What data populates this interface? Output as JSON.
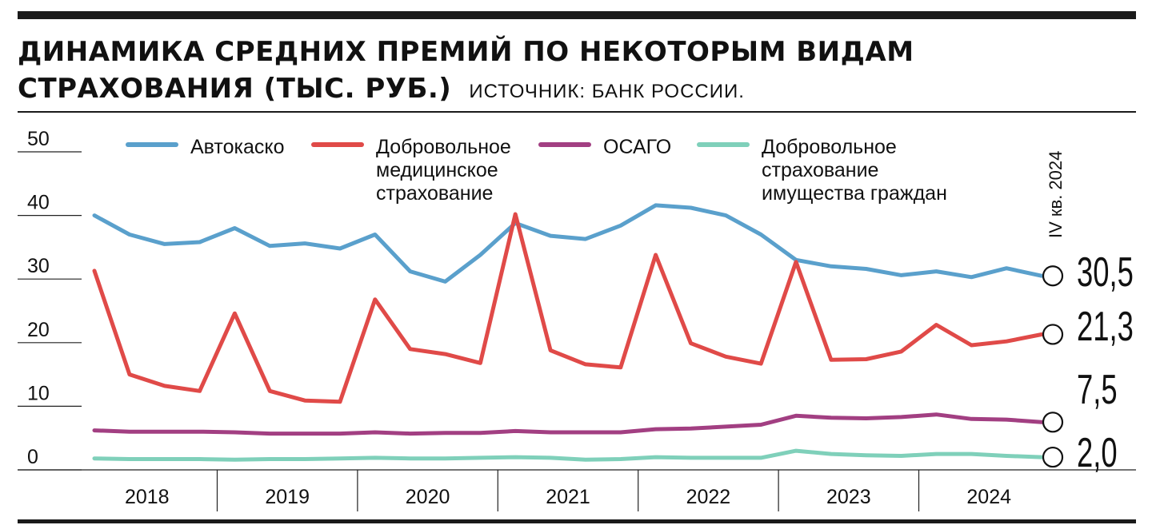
{
  "title": {
    "line1": "ДИНАМИКА СРЕДНИХ ПРЕМИЙ ПО НЕКОТОРЫМ ВИДАМ",
    "line2": "СТРАХОВАНИЯ (ТЫС. РУБ.)",
    "source": "ИСТОЧНИК: БАНК РОССИИ."
  },
  "chart_data": {
    "type": "line",
    "ylim": [
      0,
      50
    ],
    "yticks": [
      "50",
      "40",
      "30",
      "20",
      "10",
      "0"
    ],
    "years": [
      "2018",
      "2019",
      "2020",
      "2021",
      "2022",
      "2023",
      "2024"
    ],
    "period_label": "IV кв. 2024",
    "grid": false,
    "legend_position": "top",
    "series": [
      {
        "name": "Автокаско",
        "legend_lines": [
          "Автокаско"
        ],
        "color": "#5aa0cc",
        "values": [
          40.0,
          37.0,
          35.5,
          35.8,
          38.0,
          35.2,
          35.6,
          34.8,
          37.0,
          31.2,
          29.6,
          33.8,
          38.8,
          36.8,
          36.3,
          38.4,
          41.6,
          41.2,
          40.0,
          37.0,
          33.0,
          32.0,
          31.6,
          30.6,
          31.2,
          30.3,
          31.7,
          30.5
        ],
        "end_label": "30,5"
      },
      {
        "name": "Добровольное медицинское страхование",
        "legend_lines": [
          "Добровольное",
          "медицинское",
          "страхование"
        ],
        "color": "#e04a48",
        "values": [
          31.3,
          15.0,
          13.2,
          12.4,
          24.6,
          12.4,
          10.9,
          10.7,
          26.8,
          19.0,
          18.2,
          16.8,
          40.2,
          18.8,
          16.6,
          16.1,
          33.8,
          19.9,
          17.8,
          16.7,
          32.7,
          17.3,
          17.4,
          18.6,
          22.8,
          19.6,
          20.2,
          21.3
        ],
        "end_label": "21,3"
      },
      {
        "name": "ОСАГО",
        "legend_lines": [
          "ОСАГО"
        ],
        "color": "#a23f82",
        "values": [
          6.2,
          6.0,
          6.0,
          6.0,
          5.9,
          5.7,
          5.7,
          5.7,
          5.9,
          5.7,
          5.8,
          5.8,
          6.1,
          5.9,
          5.9,
          5.9,
          6.4,
          6.5,
          6.8,
          7.1,
          8.5,
          8.2,
          8.1,
          8.3,
          8.7,
          8.0,
          7.9,
          7.5
        ],
        "end_label": "7,5"
      },
      {
        "name": "Добровольное страхование имущества граждан",
        "legend_lines": [
          "Добровольное",
          "страхование",
          "имущества граждан"
        ],
        "color": "#7fd0ba",
        "values": [
          1.8,
          1.7,
          1.7,
          1.7,
          1.6,
          1.7,
          1.7,
          1.8,
          1.9,
          1.8,
          1.8,
          1.9,
          2.0,
          1.9,
          1.6,
          1.7,
          2.0,
          1.9,
          1.9,
          1.9,
          3.0,
          2.5,
          2.3,
          2.2,
          2.5,
          2.5,
          2.2,
          2.0
        ],
        "end_label": "2,0"
      }
    ]
  }
}
